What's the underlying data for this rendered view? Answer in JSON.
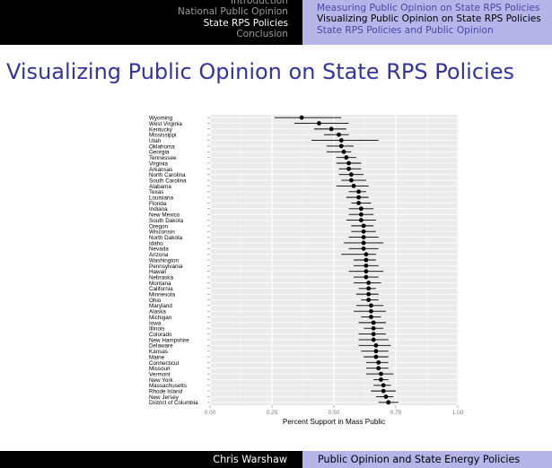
{
  "nav": {
    "left_items": [
      {
        "label": "Introduction",
        "active": false
      },
      {
        "label": "National Public Opinion",
        "active": false
      },
      {
        "label": "State RPS Policies",
        "active": true
      },
      {
        "label": "Conclusion",
        "active": false
      }
    ],
    "right_items": [
      {
        "label": "Measuring Public Opinion on State RPS Policies",
        "active": false
      },
      {
        "label": "Visualizing Public Opinion on State RPS Policies",
        "active": true
      },
      {
        "label": "State RPS Policies and Public Opinion",
        "active": false
      }
    ]
  },
  "frame": {
    "title": "Visualizing Public Opinion on State RPS Policies"
  },
  "colors": {
    "header_dark": "#000000",
    "header_light": "#b5b5ea",
    "title_blue": "#3333a6",
    "panel_bg": "#ebebeb"
  },
  "chart_data": {
    "type": "scatter",
    "title": "",
    "xlabel": "Percent Support in Mass Public",
    "ylabel": "",
    "xlim": [
      0,
      1
    ],
    "xticks": [
      0,
      0.25,
      0.5,
      0.75,
      1
    ],
    "xtick_labels": [
      "0.00",
      "0.25",
      "0.50",
      "0.75",
      "1.00"
    ],
    "grid": true,
    "error_bars": "horizontal",
    "points": [
      {
        "state": "Wyoming",
        "estimate": 0.37,
        "low": 0.26,
        "high": 0.53
      },
      {
        "state": "West Virginia",
        "estimate": 0.44,
        "low": 0.34,
        "high": 0.56
      },
      {
        "state": "Kentucky",
        "estimate": 0.49,
        "low": 0.42,
        "high": 0.55
      },
      {
        "state": "Mississippi",
        "estimate": 0.52,
        "low": 0.46,
        "high": 0.56
      },
      {
        "state": "Utah",
        "estimate": 0.53,
        "low": 0.41,
        "high": 0.68
      },
      {
        "state": "Oklahoma",
        "estimate": 0.53,
        "low": 0.47,
        "high": 0.58
      },
      {
        "state": "Georgia",
        "estimate": 0.54,
        "low": 0.47,
        "high": 0.57
      },
      {
        "state": "Tennessee",
        "estimate": 0.55,
        "low": 0.51,
        "high": 0.59
      },
      {
        "state": "Virginia",
        "estimate": 0.56,
        "low": 0.51,
        "high": 0.61
      },
      {
        "state": "Arkansas",
        "estimate": 0.56,
        "low": 0.52,
        "high": 0.61
      },
      {
        "state": "North Carolina",
        "estimate": 0.57,
        "low": 0.52,
        "high": 0.62
      },
      {
        "state": "South Carolina",
        "estimate": 0.57,
        "low": 0.53,
        "high": 0.63
      },
      {
        "state": "Alabama",
        "estimate": 0.58,
        "low": 0.51,
        "high": 0.64
      },
      {
        "state": "Texas",
        "estimate": 0.6,
        "low": 0.56,
        "high": 0.63
      },
      {
        "state": "Louisiana",
        "estimate": 0.6,
        "low": 0.55,
        "high": 0.64
      },
      {
        "state": "Florida",
        "estimate": 0.6,
        "low": 0.57,
        "high": 0.65
      },
      {
        "state": "Indiana",
        "estimate": 0.61,
        "low": 0.56,
        "high": 0.66
      },
      {
        "state": "New Mexico",
        "estimate": 0.61,
        "low": 0.56,
        "high": 0.66
      },
      {
        "state": "South Dakota",
        "estimate": 0.61,
        "low": 0.55,
        "high": 0.67
      },
      {
        "state": "Oregon",
        "estimate": 0.62,
        "low": 0.57,
        "high": 0.66
      },
      {
        "state": "Wisconsin",
        "estimate": 0.62,
        "low": 0.57,
        "high": 0.67
      },
      {
        "state": "North Dakota",
        "estimate": 0.62,
        "low": 0.56,
        "high": 0.68
      },
      {
        "state": "Idaho",
        "estimate": 0.62,
        "low": 0.54,
        "high": 0.7
      },
      {
        "state": "Nevada",
        "estimate": 0.62,
        "low": 0.56,
        "high": 0.68
      },
      {
        "state": "Arizona",
        "estimate": 0.63,
        "low": 0.53,
        "high": 0.67
      },
      {
        "state": "Washington",
        "estimate": 0.63,
        "low": 0.58,
        "high": 0.67
      },
      {
        "state": "Pennsylvania",
        "estimate": 0.63,
        "low": 0.58,
        "high": 0.68
      },
      {
        "state": "Hawaii",
        "estimate": 0.63,
        "low": 0.56,
        "high": 0.7
      },
      {
        "state": "Nebraska",
        "estimate": 0.63,
        "low": 0.58,
        "high": 0.68
      },
      {
        "state": "Montana",
        "estimate": 0.64,
        "low": 0.58,
        "high": 0.69
      },
      {
        "state": "California",
        "estimate": 0.64,
        "low": 0.6,
        "high": 0.67
      },
      {
        "state": "Minnesota",
        "estimate": 0.64,
        "low": 0.59,
        "high": 0.68
      },
      {
        "state": "Ohio",
        "estimate": 0.64,
        "low": 0.61,
        "high": 0.68
      },
      {
        "state": "Maryland",
        "estimate": 0.65,
        "low": 0.59,
        "high": 0.7
      },
      {
        "state": "Alaska",
        "estimate": 0.65,
        "low": 0.58,
        "high": 0.71
      },
      {
        "state": "Michigan",
        "estimate": 0.65,
        "low": 0.61,
        "high": 0.69
      },
      {
        "state": "Iowa",
        "estimate": 0.66,
        "low": 0.6,
        "high": 0.71
      },
      {
        "state": "Illinois",
        "estimate": 0.66,
        "low": 0.62,
        "high": 0.7
      },
      {
        "state": "Colorado",
        "estimate": 0.66,
        "low": 0.6,
        "high": 0.71
      },
      {
        "state": "New Hampshire",
        "estimate": 0.66,
        "low": 0.6,
        "high": 0.72
      },
      {
        "state": "Delaware",
        "estimate": 0.67,
        "low": 0.6,
        "high": 0.73
      },
      {
        "state": "Kansas",
        "estimate": 0.67,
        "low": 0.61,
        "high": 0.72
      },
      {
        "state": "Maine",
        "estimate": 0.67,
        "low": 0.62,
        "high": 0.72
      },
      {
        "state": "Connecticut",
        "estimate": 0.68,
        "low": 0.63,
        "high": 0.72
      },
      {
        "state": "Missouri",
        "estimate": 0.68,
        "low": 0.63,
        "high": 0.72
      },
      {
        "state": "Vermont",
        "estimate": 0.69,
        "low": 0.63,
        "high": 0.74
      },
      {
        "state": "New York",
        "estimate": 0.69,
        "low": 0.66,
        "high": 0.72
      },
      {
        "state": "Massachusetts",
        "estimate": 0.7,
        "low": 0.66,
        "high": 0.73
      },
      {
        "state": "Rhode Island",
        "estimate": 0.7,
        "low": 0.65,
        "high": 0.75
      },
      {
        "state": "New Jersey",
        "estimate": 0.71,
        "low": 0.67,
        "high": 0.74
      },
      {
        "state": "District of Columbia",
        "estimate": 0.72,
        "low": 0.68,
        "high": 0.76
      }
    ]
  },
  "footer": {
    "author": "Chris Warshaw",
    "talk_title": "Public Opinion and State Energy Policies"
  }
}
